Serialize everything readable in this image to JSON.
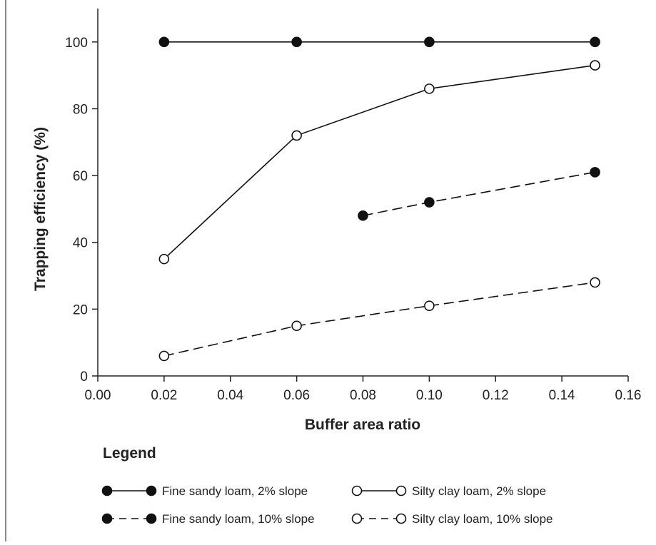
{
  "chart_data": {
    "type": "line",
    "xlabel": "Buffer area ratio",
    "ylabel": "Trapping efficiency (%)",
    "xlim": [
      0.0,
      0.16
    ],
    "ylim": [
      0,
      110
    ],
    "xticks": [
      "0.00",
      "0.02",
      "0.04",
      "0.06",
      "0.08",
      "0.10",
      "0.12",
      "0.14",
      "0.16"
    ],
    "yticks": [
      "0",
      "20",
      "40",
      "60",
      "80",
      "100"
    ],
    "grid": false,
    "legend_title": "Legend",
    "legend_position": "bottom",
    "series": [
      {
        "name": "Fine sandy loam, 2% slope",
        "marker": "filled-circle",
        "line": "solid",
        "x": [
          0.02,
          0.06,
          0.1,
          0.15
        ],
        "y": [
          100,
          100,
          100,
          100
        ]
      },
      {
        "name": "Silty clay loam, 2% slope",
        "marker": "open-circle",
        "line": "solid",
        "x": [
          0.02,
          0.06,
          0.1,
          0.15
        ],
        "y": [
          35,
          72,
          86,
          93
        ]
      },
      {
        "name": "Fine sandy loam, 10% slope",
        "marker": "filled-circle",
        "line": "dashed",
        "x": [
          0.08,
          0.1,
          0.15
        ],
        "y": [
          48,
          52,
          61
        ]
      },
      {
        "name": "Silty clay loam, 10% slope",
        "marker": "open-circle",
        "line": "dashed",
        "x": [
          0.02,
          0.06,
          0.1,
          0.15
        ],
        "y": [
          6,
          15,
          21,
          28
        ]
      }
    ],
    "colors": {
      "line": "#111111",
      "axis": "#222222",
      "open_fill": "#ffffff"
    }
  }
}
